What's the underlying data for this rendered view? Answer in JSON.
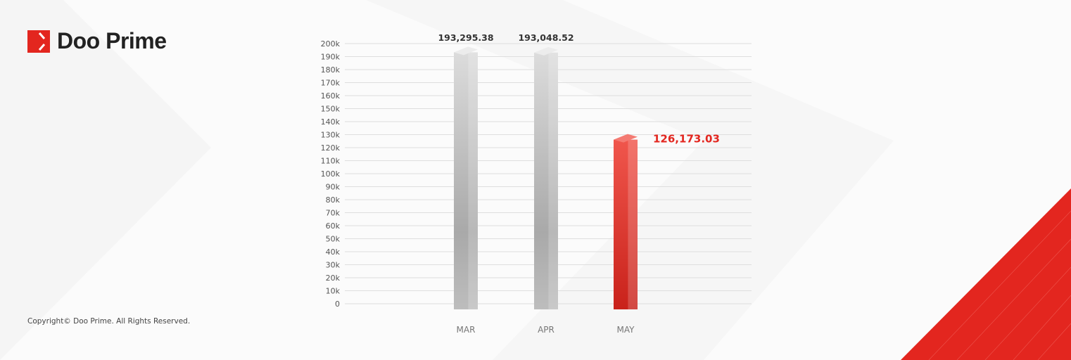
{
  "brand": {
    "name": "Doo Prime",
    "accent": "#e3261f"
  },
  "footer": {
    "copyright": "Copyright© Doo Prime. All Rights Reserved."
  },
  "chart_data": {
    "type": "bar",
    "categories": [
      "MAR",
      "APR",
      "MAY"
    ],
    "values": [
      193295.38,
      193048.52,
      126173.03
    ],
    "data_labels": [
      "193,295.38",
      "193,048.52",
      "126,173.03"
    ],
    "highlight_index": 2,
    "colors": {
      "default": "#cfcfcf",
      "highlight": "#e8453c",
      "highlight_label": "#e3261f"
    },
    "ylim": [
      0,
      200000
    ],
    "yticks": [
      0,
      10000,
      20000,
      30000,
      40000,
      50000,
      60000,
      70000,
      80000,
      90000,
      100000,
      110000,
      120000,
      130000,
      140000,
      150000,
      160000,
      170000,
      180000,
      190000,
      200000
    ],
    "ytick_labels": [
      "0",
      "10k",
      "20k",
      "30k",
      "40k",
      "50k",
      "60k",
      "70k",
      "80k",
      "90k",
      "100k",
      "110k",
      "120k",
      "130k",
      "140k",
      "150k",
      "160k",
      "170k",
      "180k",
      "190k",
      "200k"
    ],
    "grid": true,
    "title": "",
    "xlabel": "",
    "ylabel": ""
  }
}
